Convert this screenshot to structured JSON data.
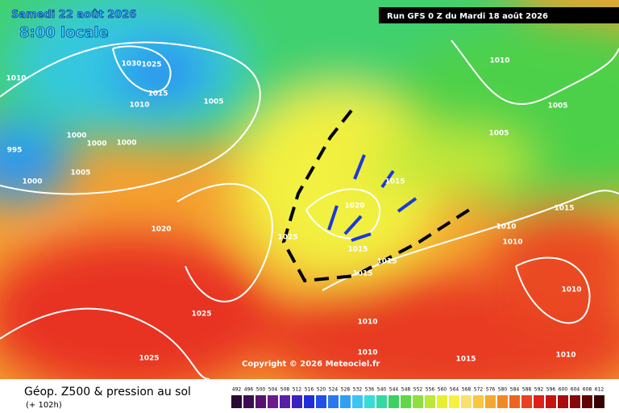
{
  "header": {
    "date": "Samedi 22 août 2026",
    "time": "8:00 locale",
    "run": "Run GFS 0 Z du Mardi 18 août 2026"
  },
  "copyright": "Copyright © 2026 Meteociel.fr",
  "footer": {
    "title": "Géop. Z500 & pression au sol",
    "lead": "(+ 102h)"
  },
  "isobar_labels": [
    1010,
    1030,
    1025,
    1015,
    1010,
    1005,
    1000,
    1000,
    1000,
    995,
    1005,
    1000,
    1020,
    1025,
    1020,
    1015,
    1015,
    1015,
    1015,
    1010,
    1005,
    1005,
    1015,
    1010,
    1010,
    1010,
    1010,
    1010,
    1025,
    1025,
    1015,
    1010
  ],
  "legend": {
    "labels": [
      492,
      496,
      500,
      504,
      508,
      512,
      516,
      520,
      524,
      528,
      532,
      536,
      540,
      544,
      548,
      552,
      556,
      560,
      564,
      568,
      572,
      576,
      580,
      584,
      588,
      592,
      596,
      600,
      604,
      608,
      612
    ],
    "colors": [
      "#2a0836",
      "#3d0c52",
      "#56126e",
      "#6e1a8a",
      "#5a1fa8",
      "#3a22c0",
      "#1f2ed8",
      "#2050e8",
      "#2a78f0",
      "#30a0f4",
      "#3cc4f4",
      "#36dcd8",
      "#34d8a0",
      "#3ed060",
      "#5ed848",
      "#8ee040",
      "#bce838",
      "#e6f030",
      "#f8f040",
      "#fae070",
      "#f8c840",
      "#f4a830",
      "#f08828",
      "#ec6420",
      "#e84020",
      "#e02018",
      "#c81410",
      "#a80c0c",
      "#880808",
      "#600404",
      "#380202"
    ]
  }
}
